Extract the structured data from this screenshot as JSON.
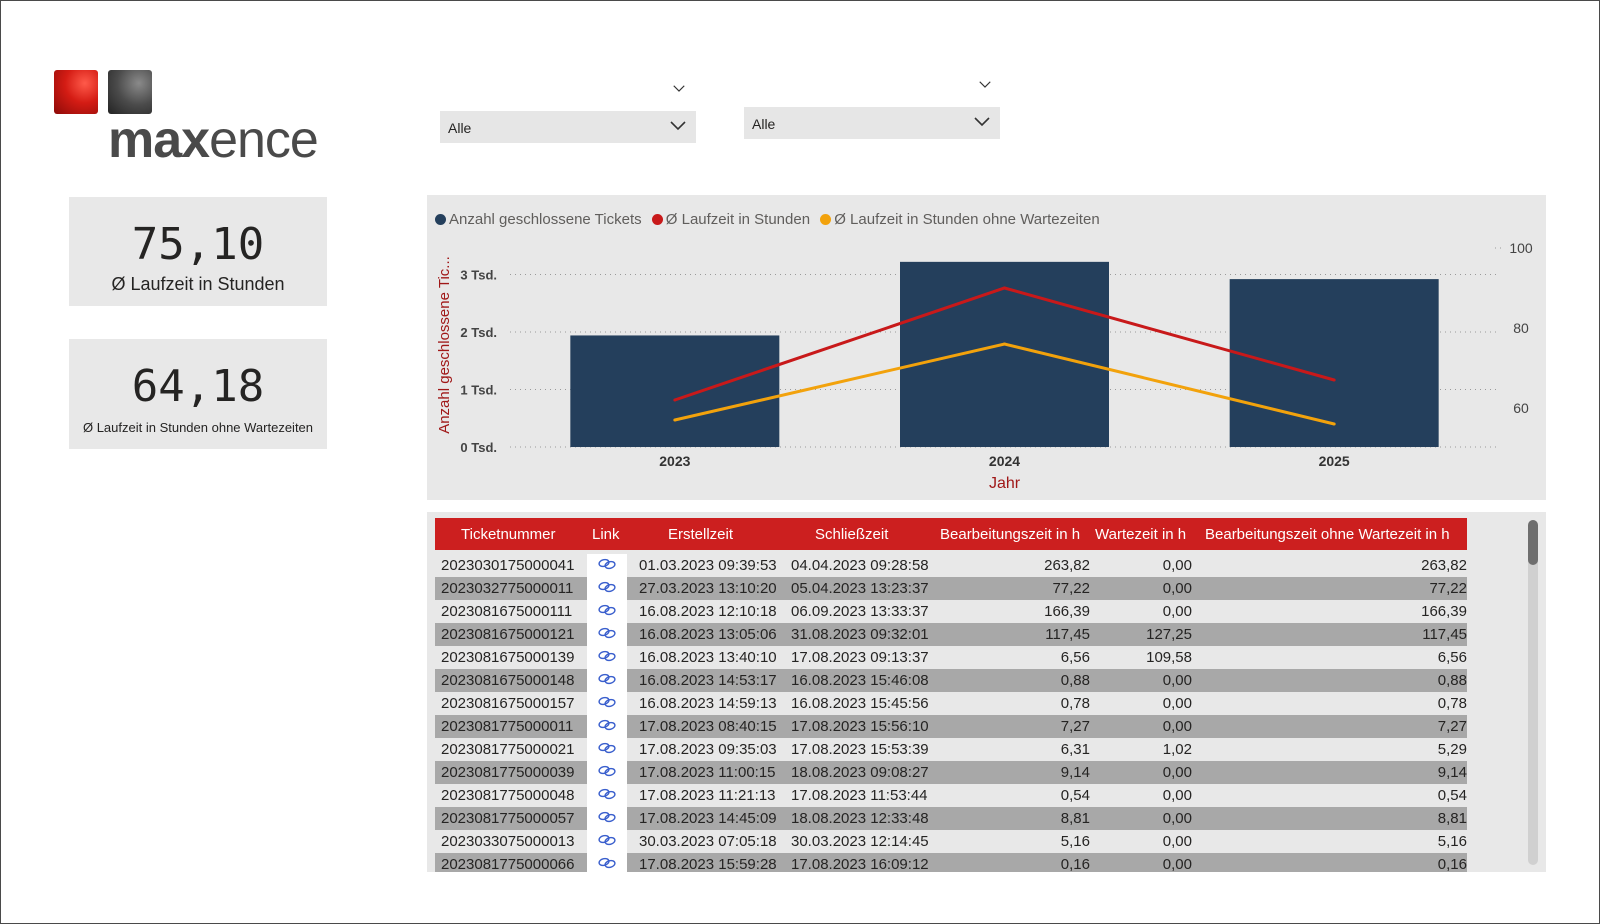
{
  "logo": {
    "text_bold": "max",
    "text_light": "ence"
  },
  "kpis": [
    {
      "value": "75,10",
      "label": "Ø Laufzeit in Stunden"
    },
    {
      "value": "64,18",
      "label": "Ø Laufzeit in Stunden ohne Wartezeiten"
    }
  ],
  "slicers": [
    {
      "selected": "Alle"
    },
    {
      "selected": "Alle"
    }
  ],
  "chart_data": {
    "type": "bar",
    "categories": [
      "2023",
      "2024",
      "2025"
    ],
    "series": [
      {
        "name": "Anzahl geschlossene Tickets",
        "kind": "bar",
        "axis": "left",
        "color": "#243f5c",
        "values": [
          1940,
          3220,
          2920
        ]
      },
      {
        "name": "Ø Laufzeit in Stunden",
        "kind": "line",
        "axis": "right",
        "color": "#c8191a",
        "values": [
          62,
          90,
          67
        ]
      },
      {
        "name": "Ø Laufzeit in Stunden ohne Wartezeiten",
        "kind": "line",
        "axis": "right",
        "color": "#f2a20c",
        "values": [
          57,
          76,
          56
        ]
      }
    ],
    "xlabel": "Jahr",
    "ylabel": "Anzahl geschlossene Tic...",
    "ylim": [
      0,
      3000
    ],
    "y_ticks": [
      "0 Tsd.",
      "1 Tsd.",
      "2 Tsd.",
      "3 Tsd."
    ],
    "y2lim": [
      60,
      100
    ],
    "y2_ticks": [
      "60",
      "80",
      "100"
    ],
    "legend_position": "top-left",
    "grid": true
  },
  "table": {
    "headers": [
      "Ticketnummer",
      "Link",
      "Erstellzeit",
      "Schließzeit",
      "Bearbeitungszeit in h",
      "Wartezeit in h",
      "Bearbeitungszeit ohne Wartezeit in h"
    ],
    "rows": [
      [
        "2023030175000041",
        "01.03.2023 09:39:53",
        "04.04.2023 09:28:58",
        "263,82",
        "0,00",
        "263,82"
      ],
      [
        "2023032775000011",
        "27.03.2023 13:10:20",
        "05.04.2023 13:23:37",
        "77,22",
        "0,00",
        "77,22"
      ],
      [
        "2023081675000111",
        "16.08.2023 12:10:18",
        "06.09.2023 13:33:37",
        "166,39",
        "0,00",
        "166,39"
      ],
      [
        "2023081675000121",
        "16.08.2023 13:05:06",
        "31.08.2023 09:32:01",
        "117,45",
        "127,25",
        "117,45"
      ],
      [
        "2023081675000139",
        "16.08.2023 13:40:10",
        "17.08.2023 09:13:37",
        "6,56",
        "109,58",
        "6,56"
      ],
      [
        "2023081675000148",
        "16.08.2023 14:53:17",
        "16.08.2023 15:46:08",
        "0,88",
        "0,00",
        "0,88"
      ],
      [
        "2023081675000157",
        "16.08.2023 14:59:13",
        "16.08.2023 15:45:56",
        "0,78",
        "0,00",
        "0,78"
      ],
      [
        "2023081775000011",
        "17.08.2023 08:40:15",
        "17.08.2023 15:56:10",
        "7,27",
        "0,00",
        "7,27"
      ],
      [
        "2023081775000021",
        "17.08.2023 09:35:03",
        "17.08.2023 15:53:39",
        "6,31",
        "1,02",
        "5,29"
      ],
      [
        "2023081775000039",
        "17.08.2023 11:00:15",
        "18.08.2023 09:08:27",
        "9,14",
        "0,00",
        "9,14"
      ],
      [
        "2023081775000048",
        "17.08.2023 11:21:13",
        "17.08.2023 11:53:44",
        "0,54",
        "0,00",
        "0,54"
      ],
      [
        "2023081775000057",
        "17.08.2023 14:45:09",
        "18.08.2023 12:33:48",
        "8,81",
        "0,00",
        "8,81"
      ],
      [
        "2023033075000013",
        "30.03.2023 07:05:18",
        "30.03.2023 12:14:45",
        "5,16",
        "0,00",
        "5,16"
      ],
      [
        "2023081775000066",
        "17.08.2023 15:59:28",
        "17.08.2023 16:09:12",
        "0,16",
        "0,00",
        "0,16"
      ]
    ],
    "link_icon": "link-icon"
  }
}
